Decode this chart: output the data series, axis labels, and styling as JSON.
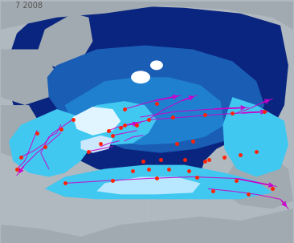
{
  "title": "7 2008",
  "title_color": "#555555",
  "title_fontsize": 7,
  "background_color": "#b0b8c0",
  "fig_width": 3.66,
  "fig_height": 3.03,
  "dpi": 100,
  "land_color": "#a0aab0",
  "ocean_deep_color": "#0a2580",
  "ice_young_color": "#40c8f0",
  "track_color": "#cc00cc",
  "dot_color": "#ff2200",
  "arrow_color": "#cc00cc"
}
